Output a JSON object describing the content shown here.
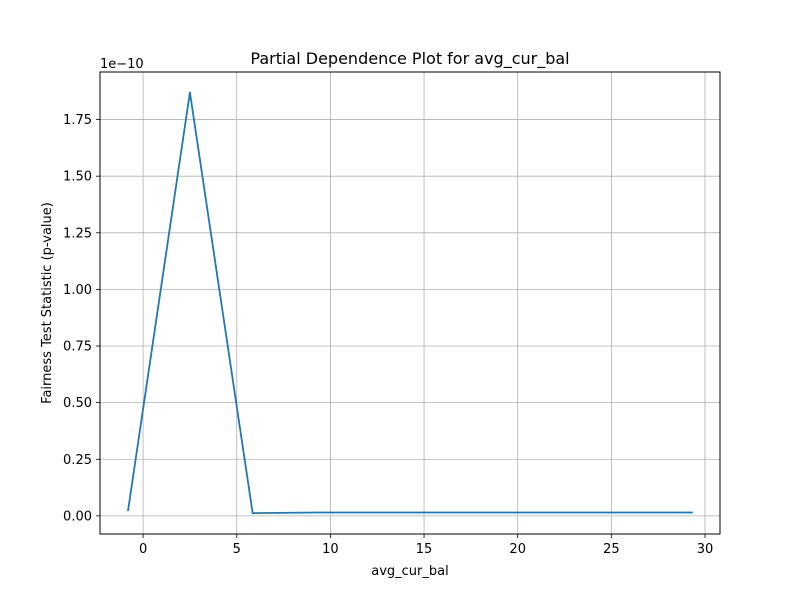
{
  "chart_data": {
    "type": "line",
    "title": "Partial Dependence Plot for avg_cur_bal",
    "xlabel": "avg_cur_bal",
    "ylabel": "Fairness Test Statistic (p-value)",
    "y_offset_label": "1e−10",
    "xlim": [
      -2.3,
      30.8
    ],
    "ylim": [
      -0.08,
      1.96
    ],
    "x_ticks": [
      0,
      5,
      10,
      15,
      20,
      25,
      30
    ],
    "x_tick_labels": [
      "0",
      "5",
      "10",
      "15",
      "20",
      "25",
      "30"
    ],
    "y_ticks": [
      0.0,
      0.25,
      0.5,
      0.75,
      1.0,
      1.25,
      1.5,
      1.75
    ],
    "y_tick_labels": [
      "0.00",
      "0.25",
      "0.50",
      "0.75",
      "1.00",
      "1.25",
      "1.50",
      "1.75"
    ],
    "grid": true,
    "series": [
      {
        "color": "#1f77b4",
        "x": [
          -0.8,
          2.5,
          5.85,
          9.2,
          12.5,
          15.9,
          19.2,
          22.6,
          25.9,
          29.3
        ],
        "y": [
          0.025,
          1.87,
          0.012,
          0.015,
          0.015,
          0.015,
          0.015,
          0.015,
          0.015,
          0.015
        ]
      }
    ]
  }
}
